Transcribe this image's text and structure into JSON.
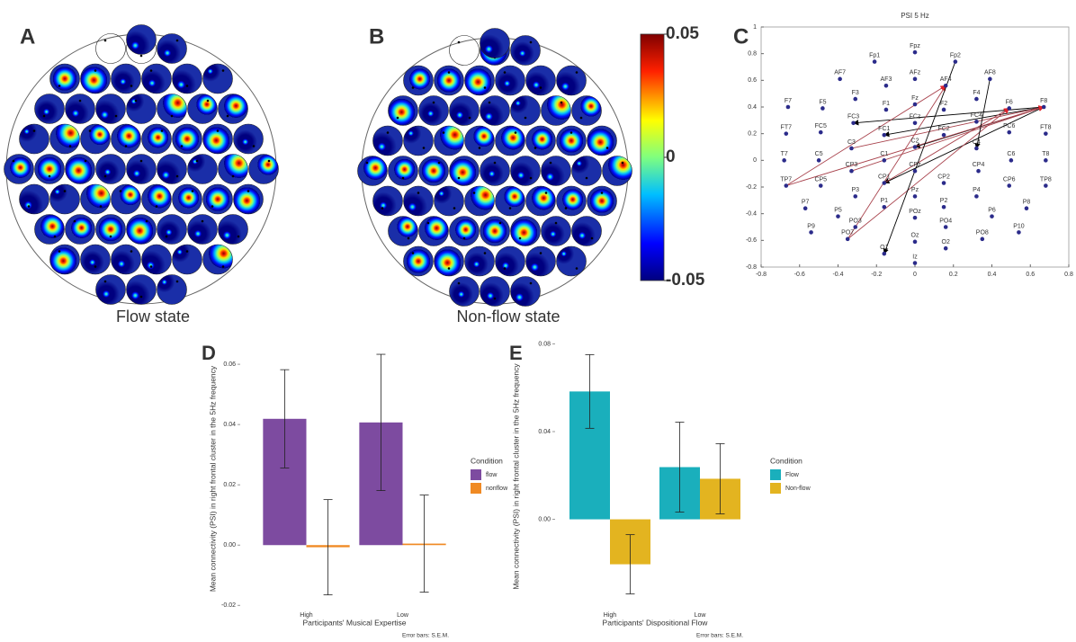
{
  "chart_data": [
    {
      "type": "topoplot",
      "panel": "A",
      "caption": "Flow state"
    },
    {
      "type": "topoplot",
      "panel": "B",
      "caption": "Non-flow state",
      "colorbar": {
        "ylim": [
          -0.05,
          0.05
        ],
        "yticks": [
          0.05,
          0,
          -0.05
        ]
      }
    },
    {
      "type": "scatter",
      "panel": "C",
      "title": "PSI 5 Hz",
      "color": "#2b2b8a",
      "xlim": [
        -0.8,
        0.8
      ],
      "xticks": [
        -0.8,
        -0.6,
        -0.4,
        -0.2,
        0,
        0.2,
        0.4,
        0.6,
        0.8
      ],
      "ylim": [
        -0.8,
        1
      ],
      "yticks": [
        -0.8,
        -0.6,
        -0.4,
        -0.2,
        0,
        0.2,
        0.4,
        0.6,
        0.8,
        1
      ],
      "labels": [
        "Fpz",
        "Fp1",
        "Fp2",
        "AF7",
        "AF3",
        "AFz",
        "AF4",
        "AF8",
        "F7",
        "F5",
        "F3",
        "F1",
        "Fz",
        "F2",
        "F4",
        "F6",
        "F8",
        "FT7",
        "FC5",
        "FC3",
        "FC1",
        "FCz",
        "FC2",
        "FC4",
        "FC6",
        "FT8",
        "T7",
        "C5",
        "C3",
        "C1",
        "C2",
        "C4",
        "C6",
        "T8",
        "TP7",
        "CP5",
        "CP3",
        "CP1",
        "CPz",
        "CP2",
        "CP4",
        "CP6",
        "TP8",
        "P7",
        "P5",
        "P3",
        "P1",
        "Pz",
        "P2",
        "P4",
        "P6",
        "P8",
        "P9",
        "PO3",
        "POz",
        "PO4",
        "P10",
        "PO7",
        "Oz",
        "PO8",
        "O1",
        "O2",
        "Iz"
      ],
      "x": [
        0,
        -0.21,
        0.21,
        -0.39,
        -0.15,
        0,
        0.16,
        0.39,
        -0.66,
        -0.48,
        -0.31,
        -0.15,
        0,
        0.15,
        0.32,
        0.49,
        0.67,
        -0.67,
        -0.49,
        -0.32,
        -0.16,
        0,
        0.15,
        0.32,
        0.49,
        0.68,
        -0.68,
        -0.5,
        -0.33,
        -0.16,
        0,
        0.32,
        0.5,
        0.68,
        -0.67,
        -0.49,
        -0.33,
        -0.16,
        0,
        0.15,
        0.33,
        0.49,
        0.68,
        -0.57,
        -0.4,
        -0.31,
        -0.16,
        0,
        0.15,
        0.32,
        0.4,
        0.58,
        -0.54,
        -0.31,
        0,
        0.16,
        0.54,
        -0.35,
        0,
        0.35,
        -0.16,
        0.16,
        0
      ],
      "y": [
        0.81,
        0.74,
        0.74,
        0.61,
        0.56,
        0.61,
        0.56,
        0.61,
        0.4,
        0.39,
        0.46,
        0.38,
        0.42,
        0.38,
        0.46,
        0.39,
        0.4,
        0.2,
        0.21,
        0.28,
        0.19,
        0.28,
        0.19,
        0.29,
        0.21,
        0.2,
        0,
        0,
        0.09,
        0,
        0.1,
        0.09,
        0,
        0,
        -0.19,
        -0.19,
        -0.08,
        -0.17,
        -0.08,
        -0.17,
        -0.08,
        -0.19,
        -0.19,
        -0.36,
        -0.42,
        -0.27,
        -0.35,
        -0.27,
        -0.35,
        -0.27,
        -0.42,
        -0.36,
        -0.54,
        -0.5,
        -0.43,
        -0.5,
        -0.54,
        -0.59,
        -0.61,
        -0.59,
        -0.7,
        -0.66,
        -0.77
      ],
      "links": [
        {
          "from": "F8",
          "to": "FC3",
          "color": "#000000"
        },
        {
          "from": "F8",
          "to": "FC1",
          "color": "#000000"
        },
        {
          "from": "F8",
          "to": "C2",
          "color": "#000000"
        },
        {
          "from": "F8",
          "to": "CP1",
          "color": "#000000"
        },
        {
          "from": "TP7",
          "to": "F8",
          "color": "#a8424c"
        },
        {
          "from": "CP3",
          "to": "F8",
          "color": "#a8424c"
        },
        {
          "from": "C3",
          "to": "F8",
          "color": "#a8424c"
        },
        {
          "from": "TP7",
          "to": "AF4",
          "color": "#a8424c"
        },
        {
          "from": "PO7",
          "to": "AF4",
          "color": "#a8424c"
        },
        {
          "from": "PO7",
          "to": "F6",
          "color": "#a8424c"
        },
        {
          "from": "CP1",
          "to": "F6",
          "color": "#a8424c"
        },
        {
          "from": "Fp2",
          "to": "O1",
          "color": "#000000"
        },
        {
          "from": "AF8",
          "to": "C4",
          "color": "#000000"
        }
      ]
    },
    {
      "type": "bar",
      "panel": "D",
      "categories": [
        "High",
        "Low"
      ],
      "series": [
        {
          "name": "flow",
          "color": "#7d4ba0",
          "values": [
            0.0419,
            0.0407
          ],
          "errors": [
            0.0163,
            0.0226
          ]
        },
        {
          "name": "nonflow",
          "color": "#f08a24",
          "values": [
            -0.0007,
            0.0005
          ],
          "errors": [
            0.0158,
            0.0161
          ]
        }
      ],
      "ylim": [
        -0.022,
        0.066
      ],
      "yticks": [
        -0.02,
        {
          "value": 0,
          "label": "0.00"
        },
        0.02,
        0.04,
        0.06
      ],
      "ylabel": "Mean connectivity (PSI) in right frontal cluster in the 5Hz frequency",
      "xlabel": "Participants' Musical Expertise",
      "legend_title": "Condition",
      "note": "Error bars: S.E.M."
    },
    {
      "type": "bar",
      "panel": "E",
      "categories": [
        "High",
        "Low"
      ],
      "series": [
        {
          "name": "Flow",
          "color": "#1aafbc",
          "values": [
            0.0583,
            0.0238
          ],
          "errors": [
            0.0168,
            0.0205
          ]
        },
        {
          "name": "Non-flow",
          "color": "#e3b420",
          "values": [
            -0.0205,
            0.0185
          ],
          "errors": [
            0.0135,
            0.016
          ]
        }
      ],
      "ylim": [
        -0.042,
        0.081
      ],
      "yticks": [
        {
          "value": 0,
          "label": "0.00"
        },
        0.04,
        0.08
      ],
      "ylabel": "Mean connectivity (PSI) in right frontal cluster in the 5Hz frequency",
      "xlabel": "Participants' Dispositional Flow",
      "legend_title": "Condition",
      "note": "Error bars: S.E.M."
    }
  ]
}
